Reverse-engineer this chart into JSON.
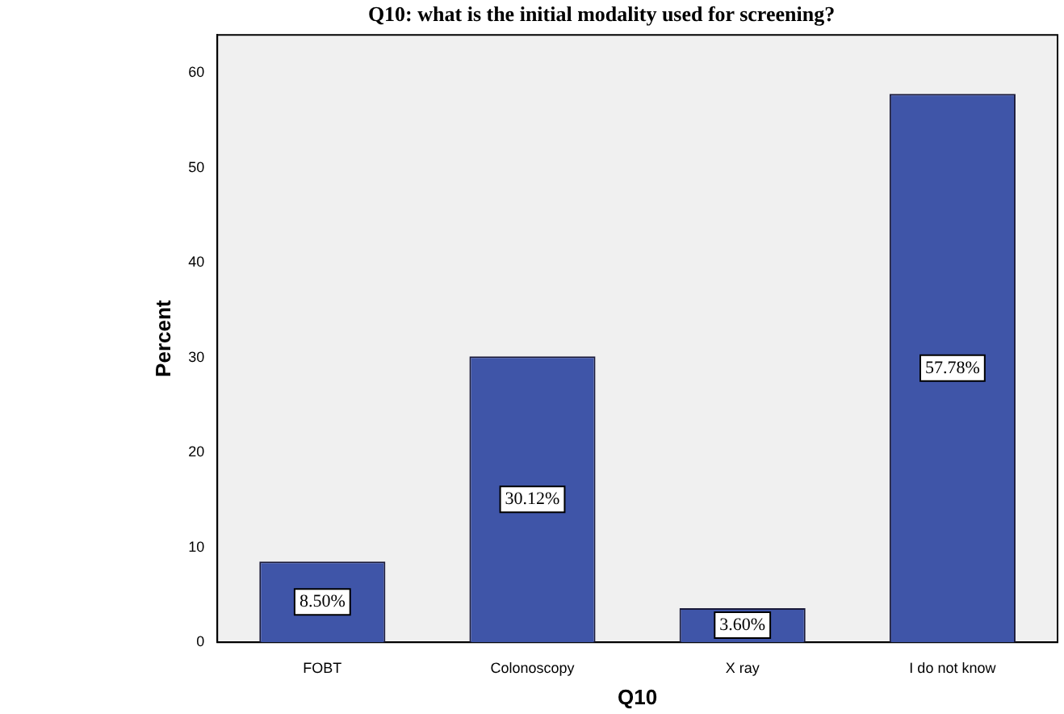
{
  "chart_data": {
    "type": "bar",
    "title": "Q10: what is the initial modality used for screening?",
    "xlabel": "Q10",
    "ylabel": "Percent",
    "categories": [
      "FOBT",
      "Colonoscopy",
      "X ray",
      "I do not know"
    ],
    "values": [
      8.5,
      30.12,
      3.6,
      57.78
    ],
    "value_labels": [
      "8.50%",
      "30.12%",
      "3.60%",
      "57.78%"
    ],
    "color": "#3f55a8",
    "ylim": [
      0,
      64
    ],
    "yticks": [
      0,
      10,
      20,
      30,
      40,
      50,
      60
    ],
    "grid": false,
    "legend": false
  }
}
